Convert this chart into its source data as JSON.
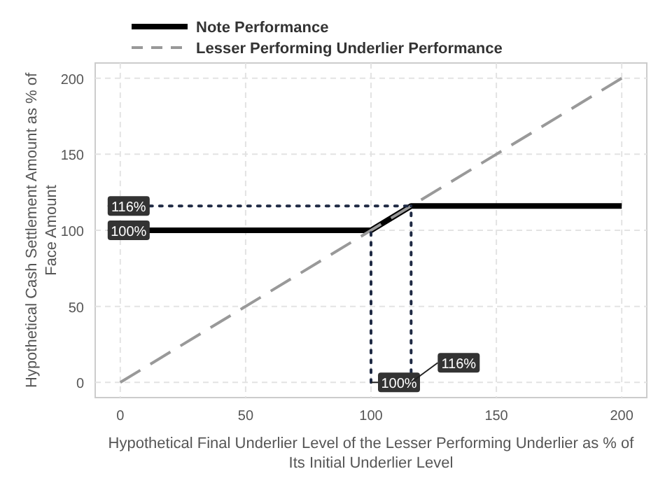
{
  "chart_data": {
    "type": "line",
    "xlabel": "Hypothetical Final Underlier Level of the Lesser Performing Underlier as % of Its Initial Underlier Level",
    "ylabel": "Hypothetical Cash Settlement Amount as % of Face Amount",
    "xlim": [
      -10,
      210
    ],
    "ylim": [
      -10,
      210
    ],
    "xticks": [
      0,
      50,
      100,
      150,
      200
    ],
    "yticks": [
      0,
      50,
      100,
      150,
      200
    ],
    "grid": true,
    "legend": "top",
    "series": [
      {
        "name": "Note Performance",
        "color": "#000000",
        "x": [
          0,
          100,
          116,
          200
        ],
        "values": [
          100,
          100,
          116,
          116
        ],
        "line_style": "solid"
      },
      {
        "name": "Lesser Performing Underlier Performance",
        "color": "#999999",
        "x": [
          0,
          200
        ],
        "values": [
          0,
          200
        ],
        "line_style": "dashed"
      },
      {
        "color": "#1f2a44",
        "x": [
          0,
          116
        ],
        "values": [
          116,
          116
        ],
        "line_style": "dotted"
      },
      {
        "color": "#1f2a44",
        "x": [
          100,
          100
        ],
        "values": [
          0,
          100
        ],
        "line_style": "dotted"
      },
      {
        "color": "#1f2a44",
        "x": [
          116,
          116
        ],
        "values": [
          0,
          116
        ],
        "line_style": "dotted"
      }
    ],
    "annotations": [
      {
        "text": "116%",
        "x": 0,
        "y": 116
      },
      {
        "text": "100%",
        "x": 0,
        "y": 100
      },
      {
        "text": "100%",
        "x": 100,
        "y": 0
      },
      {
        "text": "116%",
        "x": 116,
        "y": 0
      }
    ]
  }
}
